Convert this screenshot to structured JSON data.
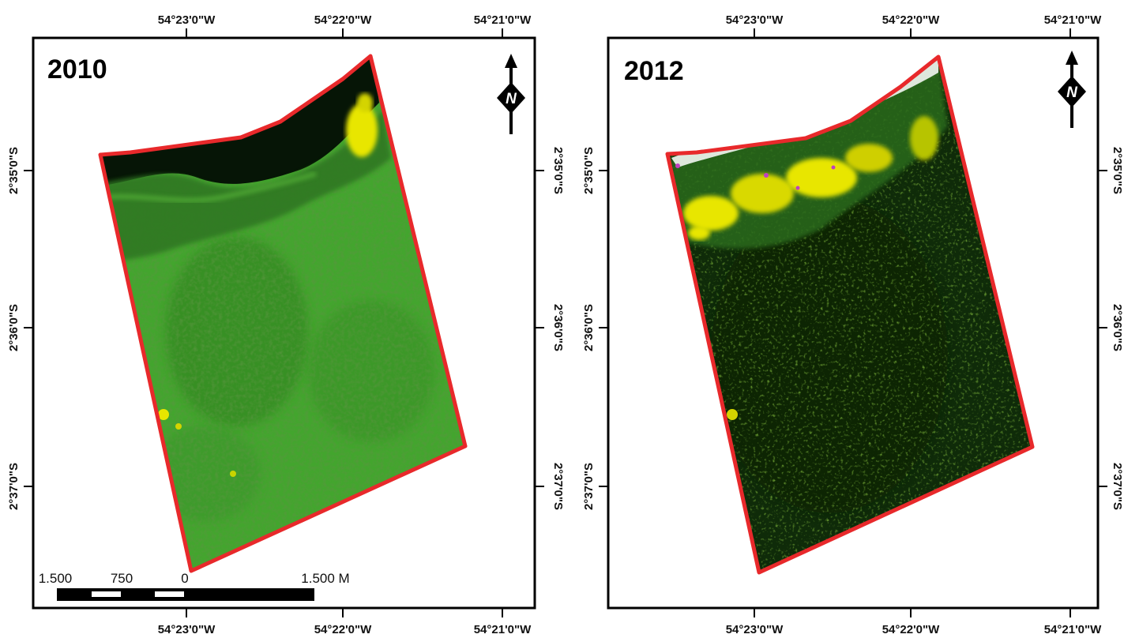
{
  "panels": [
    {
      "year": "2010",
      "top_lon_labels": [
        "54°23'0\"W",
        "54°22'0\"W",
        "54°21'0\"W"
      ],
      "bottom_lon_labels": [
        "54°23'0\"W",
        "54°22'0\"W",
        "54°21'0\"W"
      ],
      "right_lat_labels": [
        "2°35'0\"S",
        "2°36'0\"S",
        "2°37'0\"S"
      ],
      "north_letter": "N",
      "theme": "bright-green"
    },
    {
      "year": "2012",
      "top_lon_labels": [
        "54°23'0\"W",
        "54°22'0\"W",
        "54°21'0\"W"
      ],
      "bottom_lon_labels": [
        "54°23'0\"W",
        "54°22'0\"W",
        "54°21'0\"W"
      ],
      "left_lat_labels": [
        "2°35'0\"S",
        "2°36'0\"S",
        "2°37'0\"S"
      ],
      "right_lat_labels": [
        "2°35'0\"S",
        "2°36'0\"S",
        "2°37'0\"S"
      ],
      "north_letter": "N",
      "theme": "dark-green"
    }
  ],
  "scale_bar": {
    "labels": [
      "1.500",
      "750",
      "0",
      "1.500 M"
    ]
  },
  "colors": {
    "boundary": "#e8292b",
    "frame": "#000000",
    "forest_2010": "#3f9e2a",
    "forest_2012": "#0e2a08",
    "clearing_yellow": "#e8e600",
    "river_dark": "#061506"
  }
}
